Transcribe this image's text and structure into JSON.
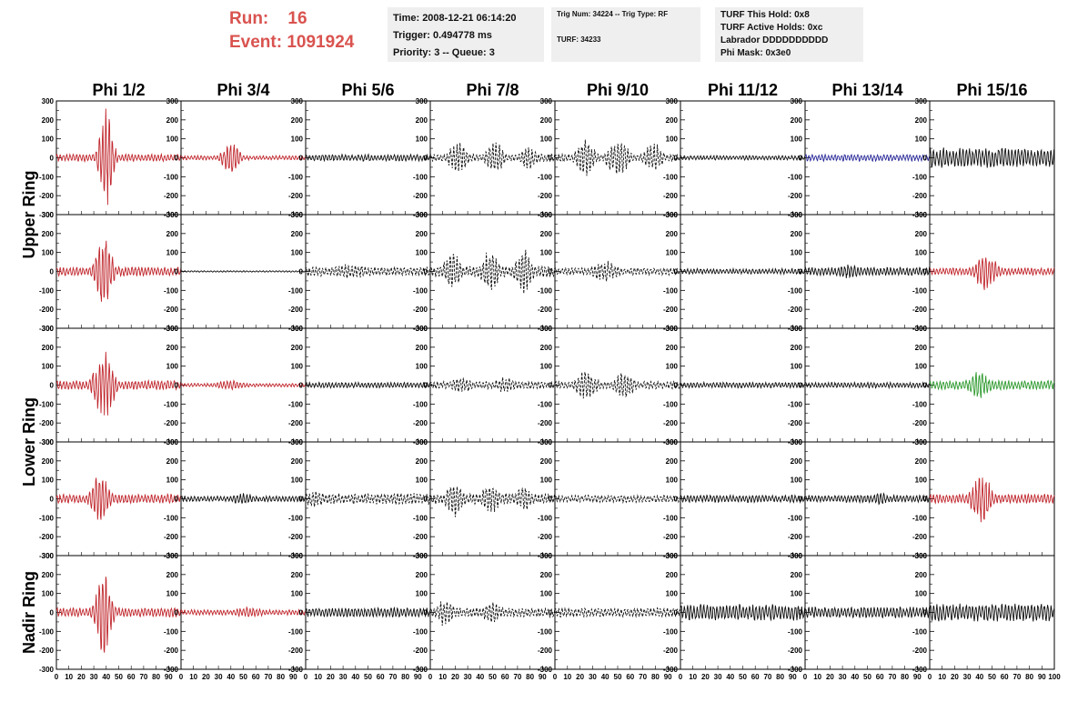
{
  "header": {
    "run_label": "Run:",
    "run_value": "16",
    "event_label": "Event:",
    "event_value": "1091924"
  },
  "info_box_1": {
    "time": "Time: 2008-12-21 06:14:20",
    "trigger": "Trigger: 0.494778 ms",
    "priority": "Priority: 3 -- Queue: 3"
  },
  "info_box_2": {
    "trig": "Trig Num: 34224 -- Trig Type: RF",
    "turf": "TURF: 34233"
  },
  "info_box_3": {
    "hold": "TURF This Hold: 0x8",
    "active": "TURF Active Holds: 0xc",
    "labrador": "Labrador DDDDDDDDDD",
    "phimask": "Phi Mask: 0x3e0"
  },
  "chart_data": {
    "type": "line",
    "columns": [
      "Phi 1/2",
      "Phi 3/4",
      "Phi 5/6",
      "Phi 7/8",
      "Phi 9/10",
      "Phi 11/12",
      "Phi 13/14",
      "Phi 15/16"
    ],
    "row_labels": [
      {
        "text": "Upper Ring",
        "rows": [
          0,
          1
        ]
      },
      {
        "text": "Lower Ring",
        "rows": [
          2,
          3
        ]
      },
      {
        "text": "Nadir Ring",
        "rows": [
          4
        ]
      }
    ],
    "xlim": [
      0,
      100
    ],
    "ylim": [
      -300,
      300
    ],
    "y_ticks": [
      300,
      200,
      100,
      0,
      -100,
      -200,
      -300
    ],
    "x_ticks": [
      "0",
      "10",
      "20",
      "30",
      "40",
      "50",
      "60",
      "70",
      "80",
      "90",
      "100"
    ],
    "colors": {
      "red": "#c0272d",
      "black": "#111111",
      "blue": "#2b2b9a",
      "green": "#2e9a2e"
    },
    "grid": false,
    "legend": "none",
    "waveforms": [
      [
        {
          "color": "red",
          "style": "solid",
          "amp": 20,
          "bursts": [
            {
              "x": 40,
              "amp": 270,
              "w": 6
            }
          ]
        },
        {
          "color": "red",
          "style": "solid",
          "amp": 12,
          "bursts": [
            {
              "x": 40,
              "amp": 90,
              "w": 8
            }
          ]
        },
        {
          "color": "black",
          "style": "solid",
          "amp": 18,
          "bursts": []
        },
        {
          "color": "black",
          "style": "dashed",
          "amp": 20,
          "bursts": [
            {
              "x": 22,
              "amp": 90,
              "w": 8
            },
            {
              "x": 52,
              "amp": 90,
              "w": 8
            },
            {
              "x": 80,
              "amp": 70,
              "w": 8
            }
          ]
        },
        {
          "color": "black",
          "style": "dashed",
          "amp": 20,
          "bursts": [
            {
              "x": 25,
              "amp": 100,
              "w": 9
            },
            {
              "x": 50,
              "amp": 110,
              "w": 9
            },
            {
              "x": 78,
              "amp": 90,
              "w": 8
            }
          ]
        },
        {
          "color": "black",
          "style": "solid",
          "amp": 12,
          "bursts": []
        },
        {
          "color": "blue",
          "style": "solid",
          "amp": 18,
          "bursts": []
        },
        {
          "color": "black",
          "style": "solid",
          "amp": 55,
          "bursts": []
        }
      ],
      [
        {
          "color": "red",
          "style": "solid",
          "amp": 25,
          "bursts": [
            {
              "x": 38,
              "amp": 220,
              "w": 7
            }
          ]
        },
        {
          "color": "black",
          "style": "solid",
          "amp": 4,
          "bursts": []
        },
        {
          "color": "black",
          "style": "dashed",
          "amp": 25,
          "bursts": [
            {
              "x": 35,
              "amp": 40,
              "w": 20
            }
          ]
        },
        {
          "color": "black",
          "style": "dashed",
          "amp": 30,
          "bursts": [
            {
              "x": 18,
              "amp": 110,
              "w": 8
            },
            {
              "x": 48,
              "amp": 120,
              "w": 8
            },
            {
              "x": 75,
              "amp": 120,
              "w": 8
            }
          ]
        },
        {
          "color": "black",
          "style": "dashed",
          "amp": 20,
          "bursts": [
            {
              "x": 40,
              "amp": 60,
              "w": 12
            }
          ]
        },
        {
          "color": "black",
          "style": "solid",
          "amp": 15,
          "bursts": []
        },
        {
          "color": "black",
          "style": "solid",
          "amp": 22,
          "bursts": [
            {
              "x": 35,
              "amp": 40,
              "w": 12
            }
          ]
        },
        {
          "color": "red",
          "style": "solid",
          "amp": 20,
          "bursts": [
            {
              "x": 45,
              "amp": 100,
              "w": 10
            }
          ]
        }
      ],
      [
        {
          "color": "red",
          "style": "solid",
          "amp": 25,
          "bursts": [
            {
              "x": 38,
              "amp": 190,
              "w": 9
            }
          ]
        },
        {
          "color": "red",
          "style": "solid",
          "amp": 10,
          "bursts": [
            {
              "x": 40,
              "amp": 25,
              "w": 15
            }
          ]
        },
        {
          "color": "black",
          "style": "solid",
          "amp": 15,
          "bursts": []
        },
        {
          "color": "black",
          "style": "dashed",
          "amp": 20,
          "bursts": [
            {
              "x": 25,
              "amp": 50,
              "w": 10
            },
            {
              "x": 60,
              "amp": 45,
              "w": 10
            }
          ]
        },
        {
          "color": "black",
          "style": "dashed",
          "amp": 20,
          "bursts": [
            {
              "x": 25,
              "amp": 80,
              "w": 10
            },
            {
              "x": 55,
              "amp": 70,
              "w": 10
            }
          ]
        },
        {
          "color": "black",
          "style": "solid",
          "amp": 15,
          "bursts": []
        },
        {
          "color": "black",
          "style": "solid",
          "amp": 15,
          "bursts": []
        },
        {
          "color": "green",
          "style": "solid",
          "amp": 25,
          "bursts": [
            {
              "x": 40,
              "amp": 80,
              "w": 10
            }
          ]
        }
      ],
      [
        {
          "color": "red",
          "style": "solid",
          "amp": 25,
          "bursts": [
            {
              "x": 35,
              "amp": 140,
              "w": 8
            }
          ]
        },
        {
          "color": "black",
          "style": "solid",
          "amp": 15,
          "bursts": [
            {
              "x": 50,
              "amp": 30,
              "w": 12
            }
          ]
        },
        {
          "color": "black",
          "style": "dashed",
          "amp": 30,
          "bursts": [
            {
              "x": 8,
              "amp": 50,
              "w": 10
            }
          ]
        },
        {
          "color": "black",
          "style": "dashed",
          "amp": 30,
          "bursts": [
            {
              "x": 20,
              "amp": 100,
              "w": 8
            },
            {
              "x": 48,
              "amp": 90,
              "w": 8
            },
            {
              "x": 75,
              "amp": 70,
              "w": 8
            }
          ]
        },
        {
          "color": "black",
          "style": "dashed",
          "amp": 20,
          "bursts": []
        },
        {
          "color": "black",
          "style": "solid",
          "amp": 20,
          "bursts": []
        },
        {
          "color": "black",
          "style": "solid",
          "amp": 20,
          "bursts": [
            {
              "x": 60,
              "amp": 35,
              "w": 10
            }
          ]
        },
        {
          "color": "red",
          "style": "solid",
          "amp": 25,
          "bursts": [
            {
              "x": 42,
              "amp": 140,
              "w": 9
            }
          ]
        }
      ],
      [
        {
          "color": "red",
          "style": "solid",
          "amp": 25,
          "bursts": [
            {
              "x": 38,
              "amp": 240,
              "w": 7
            }
          ]
        },
        {
          "color": "red",
          "style": "solid",
          "amp": 15,
          "bursts": [
            {
              "x": 55,
              "amp": 30,
              "w": 15
            }
          ]
        },
        {
          "color": "black",
          "style": "solid",
          "amp": 25,
          "bursts": []
        },
        {
          "color": "black",
          "style": "dashed",
          "amp": 25,
          "bursts": [
            {
              "x": 12,
              "amp": 80,
              "w": 8
            },
            {
              "x": 50,
              "amp": 60,
              "w": 10
            }
          ]
        },
        {
          "color": "black",
          "style": "dashed",
          "amp": 25,
          "bursts": []
        },
        {
          "color": "black",
          "style": "solid",
          "amp": 45,
          "bursts": []
        },
        {
          "color": "black",
          "style": "solid",
          "amp": 30,
          "bursts": []
        },
        {
          "color": "black",
          "style": "solid",
          "amp": 50,
          "bursts": []
        }
      ]
    ]
  }
}
